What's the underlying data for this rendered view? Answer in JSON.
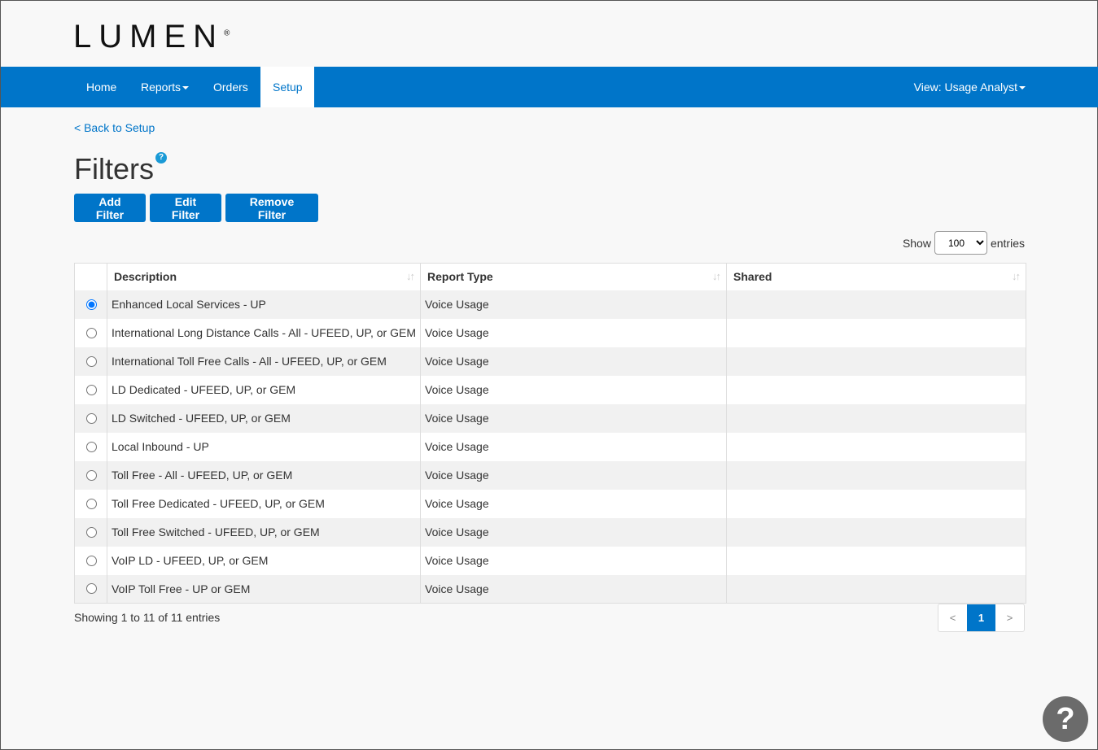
{
  "logo": {
    "text": "LUMEN",
    "mark": "®",
    "accent": "#1a9ad6"
  },
  "nav": {
    "items": [
      "Home",
      "Reports",
      "Orders",
      "Setup"
    ],
    "active": "Setup",
    "view": "View: Usage Analyst"
  },
  "back": "< Back to Setup",
  "title": "Filters",
  "help": "?",
  "buttons": {
    "add": "Add Filter",
    "edit": "Edit Filter",
    "remove": "Remove Filter"
  },
  "show": {
    "label": "Show",
    "value": "100",
    "suffix": "entries"
  },
  "table": {
    "headers": [
      "Description",
      "Report Type",
      "Shared"
    ],
    "rows": [
      {
        "d": "Enhanced Local Services - UP",
        "t": "Voice Usage",
        "selected": true
      },
      {
        "d": "International Long Distance Calls - All - UFEED, UP, or GEM",
        "t": "Voice Usage"
      },
      {
        "d": "International Toll Free Calls - All - UFEED, UP, or GEM",
        "t": "Voice Usage"
      },
      {
        "d": "LD Dedicated - UFEED, UP, or GEM",
        "t": "Voice Usage"
      },
      {
        "d": "LD Switched - UFEED, UP, or GEM",
        "t": "Voice Usage"
      },
      {
        "d": "Local Inbound - UP",
        "t": "Voice Usage"
      },
      {
        "d": "Toll Free - All - UFEED, UP, or GEM",
        "t": "Voice Usage"
      },
      {
        "d": "Toll Free Dedicated - UFEED, UP, or GEM",
        "t": "Voice Usage"
      },
      {
        "d": "Toll Free Switched - UFEED, UP, or GEM",
        "t": "Voice Usage"
      },
      {
        "d": "VoIP LD - UFEED, UP, or GEM",
        "t": "Voice Usage"
      },
      {
        "d": "VoIP Toll Free - UP or GEM",
        "t": "Voice Usage"
      }
    ]
  },
  "info": "Showing 1 to 11 of 11 entries",
  "pager": {
    "prev": "<",
    "page": "1",
    "next": ">"
  },
  "fab": "?"
}
